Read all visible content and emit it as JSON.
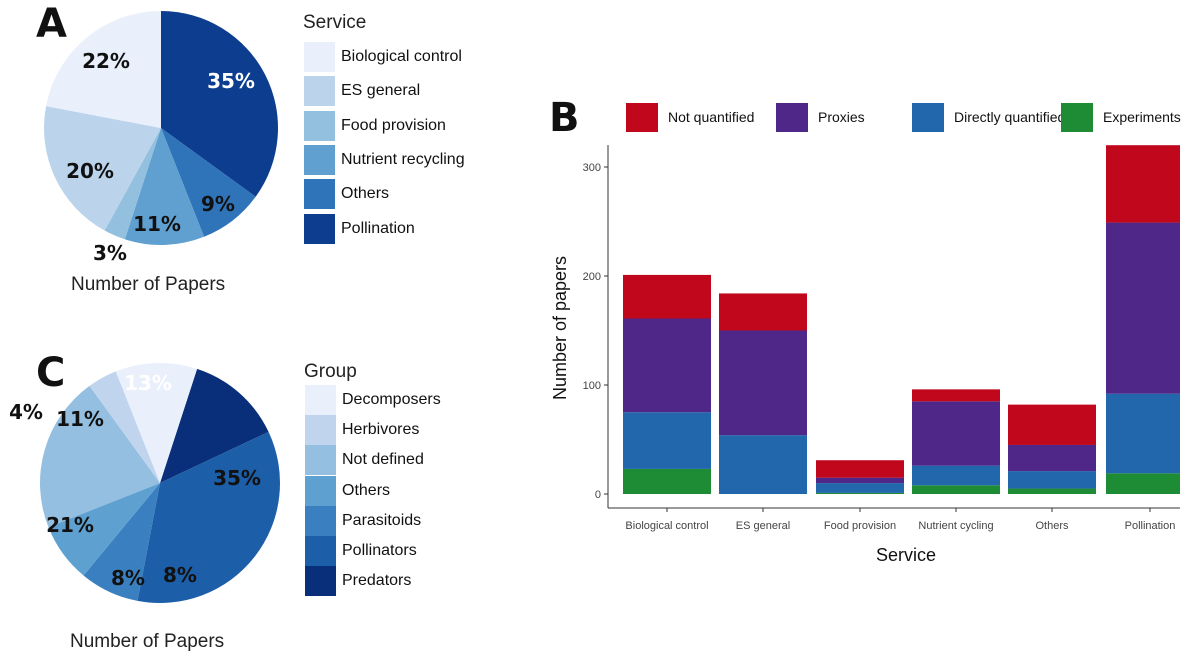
{
  "panel_a": {
    "letter": "A",
    "legend_title": "Service",
    "caption": "Number of Papers"
  },
  "panel_b": {
    "letter": "B"
  },
  "panel_c": {
    "letter": "C",
    "legend_title": "Group",
    "caption": "Number of Papers"
  },
  "chart_data": [
    {
      "panel": "A",
      "type": "pie",
      "legend_title": "Service",
      "slices": [
        {
          "label": "Biological control",
          "value": 22,
          "text": "22%",
          "color": "#e9effb"
        },
        {
          "label": "ES general",
          "value": 20,
          "text": "20%",
          "color": "#bcd3ec"
        },
        {
          "label": "Food provision",
          "value": 3,
          "text": "3%",
          "color": "#94c0e0"
        },
        {
          "label": "Nutrient recycling",
          "value": 11,
          "text": "11%",
          "color": "#5fa0d1"
        },
        {
          "label": "Others",
          "value": 9,
          "text": "9%",
          "color": "#2f73b9"
        },
        {
          "label": "Pollination",
          "value": 35,
          "text": "35%",
          "color": "#0c3d8e"
        }
      ],
      "xlabel": "Number of Papers"
    },
    {
      "panel": "B",
      "type": "bar",
      "stacked": true,
      "categories": [
        "Biological control",
        "ES general",
        "Food provision",
        "Nutrient cycling",
        "Others",
        "Pollination"
      ],
      "series": [
        {
          "name": "Experiments",
          "color": "#1e8c35",
          "values": [
            23,
            0,
            1,
            8,
            5,
            19
          ]
        },
        {
          "name": "Directly quantified",
          "color": "#2266ab",
          "values": [
            52,
            54,
            9,
            18,
            16,
            73
          ]
        },
        {
          "name": "Proxies",
          "color": "#4e2789",
          "values": [
            86,
            96,
            5,
            59,
            24,
            157
          ]
        },
        {
          "name": "Not quantified",
          "color": "#c0071c",
          "values": [
            40,
            34,
            16,
            11,
            37,
            71
          ]
        }
      ],
      "legend_order": [
        "Not quantified",
        "Proxies",
        "Directly quantified",
        "Experiments"
      ],
      "xlabel": "Service",
      "ylabel": "Number of papers",
      "yticks": [
        0,
        100,
        200,
        300
      ],
      "ylim": [
        0,
        320
      ],
      "legend_position": "top"
    },
    {
      "panel": "C",
      "type": "pie",
      "legend_title": "Group",
      "slices": [
        {
          "label": "Decomposers",
          "value": 11,
          "text": "11%",
          "color": "#e9effb"
        },
        {
          "label": "Herbivores",
          "value": 4,
          "text": "4%",
          "color": "#c0d5ed"
        },
        {
          "label": "Not defined",
          "value": 21,
          "text": "21%",
          "color": "#94bfe0"
        },
        {
          "label": "Others",
          "value": 8,
          "text": "8%",
          "color": "#5ea0d0"
        },
        {
          "label": "Parasitoids",
          "value": 8,
          "text": "8%",
          "color": "#3a80c0"
        },
        {
          "label": "Pollinators",
          "value": 35,
          "text": "35%",
          "color": "#1d5ea8"
        },
        {
          "label": "Predators",
          "value": 13,
          "text": "13%",
          "color": "#0a2f7a"
        }
      ],
      "xlabel": "Number of Papers"
    }
  ]
}
